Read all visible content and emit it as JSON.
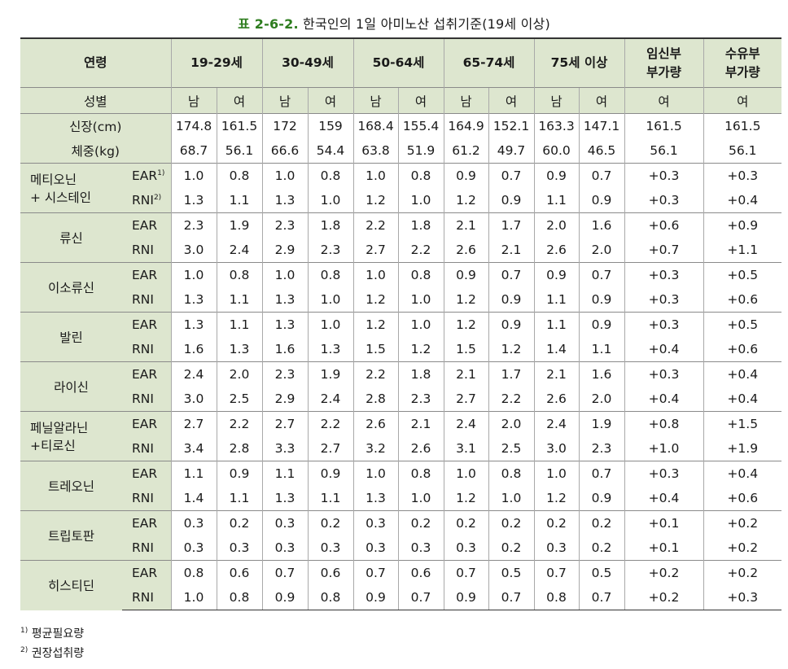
{
  "title": {
    "prefix": "표 2-6-2.",
    "text": " 한국인의 1일 아미노산 섭취기준(19세 이상)"
  },
  "header": {
    "age_label": "연령",
    "age_groups": [
      "19-29세",
      "30-49세",
      "50-64세",
      "65-74세",
      "75세 이상"
    ],
    "pregnancy_line1": "임신부",
    "pregnancy_line2": "부가량",
    "lactation_line1": "수유부",
    "lactation_line2": "부가량",
    "sex_label": "성별",
    "sexes": [
      "남",
      "여",
      "남",
      "여",
      "남",
      "여",
      "남",
      "여",
      "남",
      "여",
      "여",
      "여"
    ],
    "height_label": "신장(cm)",
    "heights": [
      "174.8",
      "161.5",
      "172",
      "159",
      "168.4",
      "155.4",
      "164.9",
      "152.1",
      "163.3",
      "147.1",
      "161.5",
      "161.5"
    ],
    "weight_label": "체중(kg)",
    "weights": [
      "68.7",
      "56.1",
      "66.6",
      "54.4",
      "63.8",
      "51.9",
      "61.2",
      "49.7",
      "60.0",
      "46.5",
      "56.1",
      "56.1"
    ]
  },
  "amino_acids": [
    {
      "name1": "메티오닌",
      "name2": "+ 시스테인",
      "sup1": "1)",
      "sup2": "2)",
      "ear": [
        "1.0",
        "0.8",
        "1.0",
        "0.8",
        "1.0",
        "0.8",
        "0.9",
        "0.7",
        "0.9",
        "0.7",
        "+0.3",
        "+0.3"
      ],
      "rni": [
        "1.3",
        "1.1",
        "1.3",
        "1.0",
        "1.2",
        "1.0",
        "1.2",
        "0.9",
        "1.1",
        "0.9",
        "+0.3",
        "+0.4"
      ]
    },
    {
      "name1": "류신",
      "name2": "",
      "ear": [
        "2.3",
        "1.9",
        "2.3",
        "1.8",
        "2.2",
        "1.8",
        "2.1",
        "1.7",
        "2.0",
        "1.6",
        "+0.6",
        "+0.9"
      ],
      "rni": [
        "3.0",
        "2.4",
        "2.9",
        "2.3",
        "2.7",
        "2.2",
        "2.6",
        "2.1",
        "2.6",
        "2.0",
        "+0.7",
        "+1.1"
      ]
    },
    {
      "name1": "이소류신",
      "name2": "",
      "ear": [
        "1.0",
        "0.8",
        "1.0",
        "0.8",
        "1.0",
        "0.8",
        "0.9",
        "0.7",
        "0.9",
        "0.7",
        "+0.3",
        "+0.5"
      ],
      "rni": [
        "1.3",
        "1.1",
        "1.3",
        "1.0",
        "1.2",
        "1.0",
        "1.2",
        "0.9",
        "1.1",
        "0.9",
        "+0.3",
        "+0.6"
      ]
    },
    {
      "name1": "발린",
      "name2": "",
      "ear": [
        "1.3",
        "1.1",
        "1.3",
        "1.0",
        "1.2",
        "1.0",
        "1.2",
        "0.9",
        "1.1",
        "0.9",
        "+0.3",
        "+0.5"
      ],
      "rni": [
        "1.6",
        "1.3",
        "1.6",
        "1.3",
        "1.5",
        "1.2",
        "1.5",
        "1.2",
        "1.4",
        "1.1",
        "+0.4",
        "+0.6"
      ]
    },
    {
      "name1": "라이신",
      "name2": "",
      "ear": [
        "2.4",
        "2.0",
        "2.3",
        "1.9",
        "2.2",
        "1.8",
        "2.1",
        "1.7",
        "2.1",
        "1.6",
        "+0.3",
        "+0.4"
      ],
      "rni": [
        "3.0",
        "2.5",
        "2.9",
        "2.4",
        "2.8",
        "2.3",
        "2.7",
        "2.2",
        "2.6",
        "2.0",
        "+0.4",
        "+0.4"
      ]
    },
    {
      "name1": "페닐알라닌",
      "name2": "+티로신",
      "ear": [
        "2.7",
        "2.2",
        "2.7",
        "2.2",
        "2.6",
        "2.1",
        "2.4",
        "2.0",
        "2.4",
        "1.9",
        "+0.8",
        "+1.5"
      ],
      "rni": [
        "3.4",
        "2.8",
        "3.3",
        "2.7",
        "3.2",
        "2.6",
        "3.1",
        "2.5",
        "3.0",
        "2.3",
        "+1.0",
        "+1.9"
      ]
    },
    {
      "name1": "트레오닌",
      "name2": "",
      "ear": [
        "1.1",
        "0.9",
        "1.1",
        "0.9",
        "1.0",
        "0.8",
        "1.0",
        "0.8",
        "1.0",
        "0.7",
        "+0.3",
        "+0.4"
      ],
      "rni": [
        "1.4",
        "1.1",
        "1.3",
        "1.1",
        "1.3",
        "1.0",
        "1.2",
        "1.0",
        "1.2",
        "0.9",
        "+0.4",
        "+0.6"
      ]
    },
    {
      "name1": "트립토판",
      "name2": "",
      "ear": [
        "0.3",
        "0.2",
        "0.3",
        "0.2",
        "0.3",
        "0.2",
        "0.2",
        "0.2",
        "0.2",
        "0.2",
        "+0.1",
        "+0.2"
      ],
      "rni": [
        "0.3",
        "0.3",
        "0.3",
        "0.3",
        "0.3",
        "0.3",
        "0.3",
        "0.2",
        "0.3",
        "0.2",
        "+0.1",
        "+0.2"
      ]
    },
    {
      "name1": "히스티딘",
      "name2": "",
      "ear": [
        "0.8",
        "0.6",
        "0.7",
        "0.6",
        "0.7",
        "0.6",
        "0.7",
        "0.5",
        "0.7",
        "0.5",
        "+0.2",
        "+0.2"
      ],
      "rni": [
        "1.0",
        "0.8",
        "0.9",
        "0.8",
        "0.9",
        "0.7",
        "0.9",
        "0.7",
        "0.8",
        "0.7",
        "+0.2",
        "+0.3"
      ]
    }
  ],
  "labels": {
    "ear": "EAR",
    "rni": "RNI"
  },
  "footnotes": [
    {
      "mark": "1)",
      "text": " 평균필요량"
    },
    {
      "mark": "2)",
      "text": " 권장섭취량"
    }
  ],
  "colors": {
    "header_bg": "#dde6cf",
    "title_accent": "#2e7d1f"
  }
}
